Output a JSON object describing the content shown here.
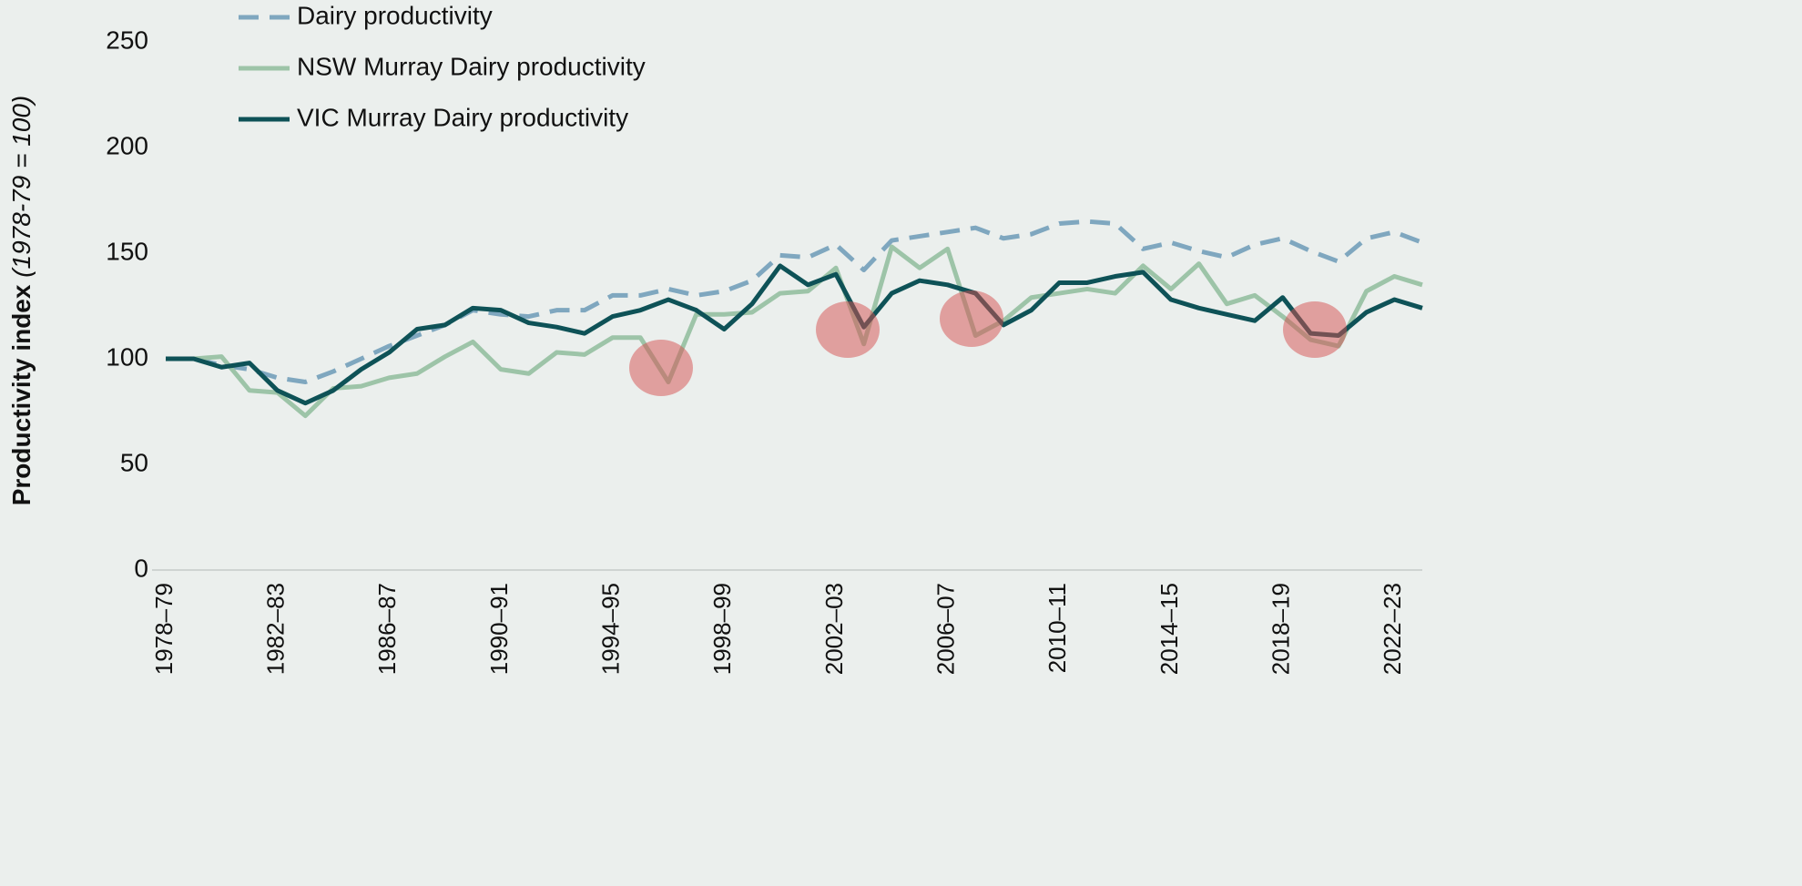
{
  "chart_data": {
    "type": "line",
    "ylabel": "Productivity index",
    "ylabel_note": "(1978-79 = 100)",
    "categories": [
      "1978–79",
      null,
      null,
      null,
      "1982–83",
      null,
      null,
      null,
      "1986–87",
      null,
      null,
      null,
      "1990–91",
      null,
      null,
      null,
      "1994–95",
      null,
      null,
      null,
      "1998–99",
      null,
      null,
      null,
      "2002–03",
      null,
      null,
      null,
      "2006–07",
      null,
      null,
      null,
      "2010–11",
      null,
      null,
      null,
      "2014–15",
      null,
      null,
      null,
      "2018–19",
      null,
      null,
      null,
      "2022–23",
      null
    ],
    "series": [
      {
        "name": "Dairy productivity",
        "color": "#7fa7bf",
        "dashed": true,
        "values": [
          100,
          100,
          97,
          95,
          91,
          89,
          94,
          100,
          106,
          111,
          116,
          123,
          121,
          120,
          123,
          123,
          130,
          130,
          133,
          130,
          132,
          137,
          149,
          148,
          154,
          142,
          156,
          158,
          160,
          162,
          157,
          159,
          164,
          165,
          164,
          152,
          155,
          151,
          148,
          154,
          157,
          151,
          146,
          157,
          160,
          155
        ]
      },
      {
        "name": "NSW Murray Dairy productivity",
        "color": "#9dc4a8",
        "values": [
          100,
          100,
          101,
          85,
          84,
          73,
          86,
          87,
          91,
          93,
          101,
          108,
          95,
          93,
          103,
          102,
          110,
          110,
          89,
          121,
          121,
          122,
          131,
          132,
          143,
          107,
          153,
          143,
          152,
          111,
          118,
          129,
          131,
          133,
          131,
          144,
          133,
          145,
          126,
          130,
          120,
          109,
          106,
          132,
          139,
          135
        ]
      },
      {
        "name": "VIC Murray Dairy productivity",
        "color": "#0e5257",
        "values": [
          100,
          100,
          96,
          98,
          85,
          79,
          85,
          95,
          103,
          114,
          116,
          124,
          123,
          117,
          115,
          112,
          120,
          123,
          128,
          123,
          114,
          126,
          144,
          135,
          140,
          115,
          131,
          137,
          135,
          131,
          116,
          123,
          136,
          136,
          139,
          141,
          128,
          124,
          121,
          118,
          129,
          112,
          111,
          122,
          128,
          124
        ]
      }
    ],
    "ylim": [
      0,
      250
    ],
    "yticks": [
      0,
      50,
      100,
      150,
      200,
      250
    ],
    "grid": false,
    "legend": "top-left"
  }
}
